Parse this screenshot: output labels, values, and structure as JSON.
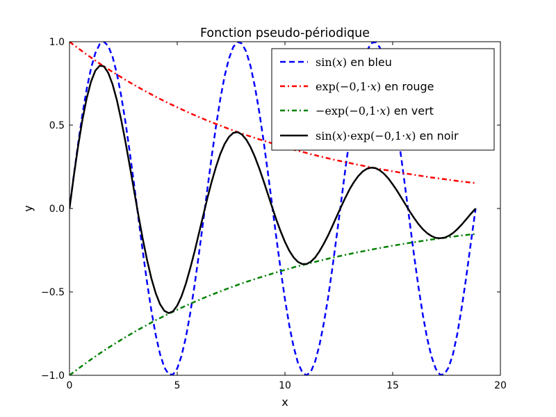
{
  "chart_data": {
    "type": "line",
    "title": "Fonction pseudo-périodique",
    "xlabel": "x",
    "ylabel": "y",
    "xlim": [
      0,
      20
    ],
    "ylim": [
      -1.0,
      1.0
    ],
    "x_ticks": [
      0,
      5,
      10,
      15,
      20
    ],
    "x_tick_labels": [
      "0",
      "5",
      "10",
      "15",
      "20"
    ],
    "y_ticks": [
      -1.0,
      -0.5,
      0.0,
      0.5,
      1.0
    ],
    "y_tick_labels": [
      "−1.0",
      "−0.5",
      "0.0",
      "0.5",
      "1.0"
    ],
    "grid": false,
    "legend_position": "top-right",
    "x": [
      0,
      0.2,
      0.4,
      0.6,
      0.8,
      1.0,
      1.2,
      1.4,
      1.6,
      1.8,
      2.0,
      2.2,
      2.4,
      2.6,
      2.8,
      3.0,
      3.2,
      3.4,
      3.6,
      3.8,
      4.0,
      4.2,
      4.4,
      4.6,
      4.8,
      5.0,
      5.2,
      5.4,
      5.6,
      5.8,
      6.0,
      6.2,
      6.4,
      6.6,
      6.8,
      7.0,
      7.2,
      7.4,
      7.6,
      7.8,
      8.0,
      8.2,
      8.4,
      8.6,
      8.8,
      9.0,
      9.2,
      9.4,
      9.6,
      9.8,
      10.0,
      10.2,
      10.4,
      10.6,
      10.8,
      11.0,
      11.2,
      11.4,
      11.6,
      11.8,
      12.0,
      12.2,
      12.4,
      12.6,
      12.8,
      13.0,
      13.2,
      13.4,
      13.6,
      13.8,
      14.0,
      14.2,
      14.4,
      14.6,
      14.8,
      15.0,
      15.2,
      15.4,
      15.6,
      15.8,
      16.0,
      16.2,
      16.4,
      16.6,
      16.8,
      17.0,
      17.2,
      17.4,
      17.6,
      17.8,
      18.0,
      18.2,
      18.4,
      18.6,
      18.85
    ],
    "series": [
      {
        "legend_prefix": "sin(",
        "legend_var": "x",
        "legend_suffix": ")",
        "legend_tail": " en bleu",
        "color": "#0000ff",
        "linestyle": "dashed",
        "values": [
          0.0,
          0.199,
          0.389,
          0.565,
          0.717,
          0.841,
          0.932,
          0.985,
          1.0,
          0.974,
          0.909,
          0.808,
          0.675,
          0.516,
          0.335,
          0.141,
          -0.058,
          -0.256,
          -0.443,
          -0.612,
          -0.757,
          -0.872,
          -0.952,
          -0.994,
          -0.996,
          -0.959,
          -0.883,
          -0.773,
          -0.631,
          -0.465,
          -0.279,
          -0.083,
          0.117,
          0.312,
          0.494,
          0.657,
          0.794,
          0.899,
          0.968,
          0.999,
          0.989,
          0.941,
          0.855,
          0.734,
          0.585,
          0.412,
          0.223,
          0.025,
          -0.174,
          -0.366,
          -0.544,
          -0.7,
          -0.828,
          -0.924,
          -0.981,
          -1.0,
          -0.979,
          -0.918,
          -0.82,
          -0.69,
          -0.537,
          -0.358,
          -0.165,
          0.033,
          0.232,
          0.42,
          0.592,
          0.74,
          0.859,
          0.943,
          0.991,
          0.998,
          0.966,
          0.895,
          0.789,
          0.65,
          0.487,
          0.303,
          0.108,
          -0.091,
          -0.288,
          -0.473,
          -0.638,
          -0.778,
          -0.887,
          -0.961,
          -0.997,
          -0.994,
          -0.952,
          -0.873,
          -0.751,
          -0.599,
          -0.424,
          -0.233,
          0.0
        ]
      },
      {
        "legend_prefix": "exp(−0,1·",
        "legend_var": "x",
        "legend_suffix": ")",
        "legend_tail": " en rouge",
        "color": "#ff0000",
        "linestyle": "dashdot",
        "values": [
          1.0,
          0.98,
          0.961,
          0.942,
          0.923,
          0.905,
          0.887,
          0.869,
          0.852,
          0.835,
          0.819,
          0.803,
          0.787,
          0.771,
          0.756,
          0.741,
          0.726,
          0.712,
          0.698,
          0.684,
          0.67,
          0.657,
          0.644,
          0.631,
          0.619,
          0.607,
          0.595,
          0.583,
          0.571,
          0.56,
          0.549,
          0.538,
          0.527,
          0.517,
          0.507,
          0.497,
          0.487,
          0.477,
          0.468,
          0.458,
          0.449,
          0.44,
          0.432,
          0.423,
          0.415,
          0.407,
          0.399,
          0.391,
          0.383,
          0.375,
          0.368,
          0.361,
          0.353,
          0.346,
          0.34,
          0.333,
          0.326,
          0.32,
          0.313,
          0.307,
          0.301,
          0.295,
          0.289,
          0.284,
          0.278,
          0.273,
          0.267,
          0.262,
          0.257,
          0.252,
          0.247,
          0.242,
          0.237,
          0.232,
          0.228,
          0.223,
          0.219,
          0.214,
          0.21,
          0.206,
          0.202,
          0.198,
          0.194,
          0.19,
          0.186,
          0.183,
          0.179,
          0.176,
          0.172,
          0.169,
          0.165,
          0.162,
          0.159,
          0.156,
          0.152
        ]
      },
      {
        "legend_prefix": "−exp(−0,1·",
        "legend_var": "x",
        "legend_suffix": ")",
        "legend_tail": " en vert",
        "color": "#008000",
        "linestyle": "dashdot",
        "values": [
          -1.0,
          -0.98,
          -0.961,
          -0.942,
          -0.923,
          -0.905,
          -0.887,
          -0.869,
          -0.852,
          -0.835,
          -0.819,
          -0.803,
          -0.787,
          -0.771,
          -0.756,
          -0.741,
          -0.726,
          -0.712,
          -0.698,
          -0.684,
          -0.67,
          -0.657,
          -0.644,
          -0.631,
          -0.619,
          -0.607,
          -0.595,
          -0.583,
          -0.571,
          -0.56,
          -0.549,
          -0.538,
          -0.527,
          -0.517,
          -0.507,
          -0.497,
          -0.487,
          -0.477,
          -0.468,
          -0.458,
          -0.449,
          -0.44,
          -0.432,
          -0.423,
          -0.415,
          -0.407,
          -0.399,
          -0.391,
          -0.383,
          -0.375,
          -0.368,
          -0.361,
          -0.353,
          -0.346,
          -0.34,
          -0.333,
          -0.326,
          -0.32,
          -0.313,
          -0.307,
          -0.301,
          -0.295,
          -0.289,
          -0.284,
          -0.278,
          -0.273,
          -0.267,
          -0.262,
          -0.257,
          -0.252,
          -0.247,
          -0.242,
          -0.237,
          -0.232,
          -0.228,
          -0.223,
          -0.219,
          -0.214,
          -0.21,
          -0.206,
          -0.202,
          -0.198,
          -0.194,
          -0.19,
          -0.186,
          -0.183,
          -0.179,
          -0.176,
          -0.172,
          -0.169,
          -0.165,
          -0.162,
          -0.159,
          -0.156,
          -0.152
        ]
      },
      {
        "legend_prefix": "sin(",
        "legend_var": "x",
        "legend_suffix": ")·exp(−0,1·",
        "legend_var2": "x",
        "legend_suffix2": ")",
        "legend_tail": " en noir",
        "color": "#000000",
        "linestyle": "solid",
        "values": [
          0.0,
          0.195,
          0.374,
          0.532,
          0.662,
          0.761,
          0.827,
          0.856,
          0.852,
          0.813,
          0.744,
          0.649,
          0.531,
          0.398,
          0.253,
          0.105,
          -0.042,
          -0.182,
          -0.309,
          -0.419,
          -0.507,
          -0.573,
          -0.613,
          -0.627,
          -0.617,
          -0.582,
          -0.526,
          -0.451,
          -0.36,
          -0.261,
          -0.153,
          -0.045,
          0.062,
          0.161,
          0.25,
          0.327,
          0.387,
          0.429,
          0.453,
          0.458,
          0.444,
          0.414,
          0.369,
          0.311,
          0.243,
          0.168,
          0.089,
          0.01,
          -0.067,
          -0.137,
          -0.2,
          -0.253,
          -0.293,
          -0.32,
          -0.333,
          -0.333,
          -0.319,
          -0.294,
          -0.257,
          -0.212,
          -0.162,
          -0.106,
          -0.048,
          0.009,
          0.064,
          0.115,
          0.158,
          0.194,
          0.221,
          0.238,
          0.245,
          0.242,
          0.229,
          0.208,
          0.18,
          0.145,
          0.107,
          0.065,
          0.023,
          -0.019,
          -0.058,
          -0.094,
          -0.124,
          -0.148,
          -0.165,
          -0.176,
          -0.178,
          -0.175,
          -0.164,
          -0.147,
          -0.124,
          -0.097,
          -0.067,
          -0.036,
          0.0
        ]
      }
    ]
  }
}
